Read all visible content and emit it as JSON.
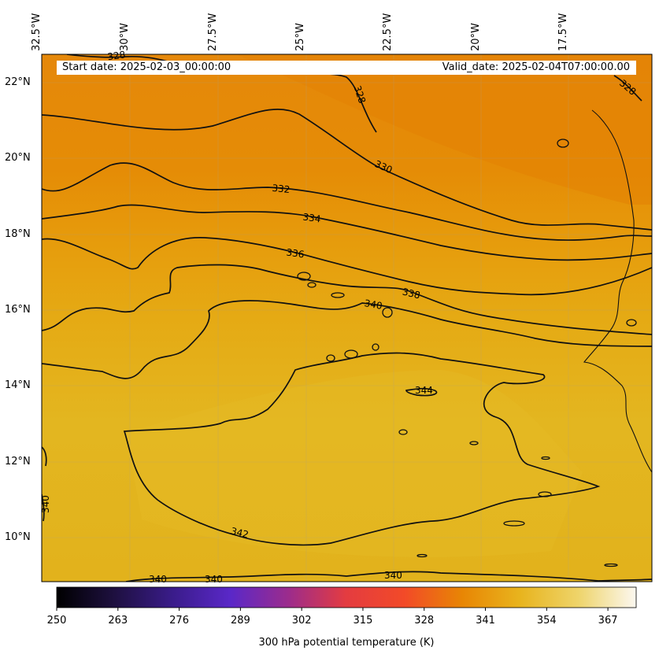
{
  "map": {
    "lon_labels": [
      "32.5°W",
      "30°W",
      "27.5°W",
      "25°W",
      "22.5°W",
      "20°W",
      "17.5°W"
    ],
    "lat_labels": [
      "22°N",
      "20°N",
      "18°N",
      "16°N",
      "14°N",
      "12°N",
      "10°N"
    ],
    "start_date": "Start date: 2025-02-03_00:00:00",
    "valid_date": "Valid_date: 2025-02-04T07:00:00.00",
    "contour_labels": [
      "328",
      "328",
      "328",
      "330",
      "332",
      "334",
      "336",
      "338",
      "340",
      "344",
      "342",
      "340",
      "340",
      "340",
      "340"
    ],
    "fill_colors": {
      "north": "#e58a04",
      "mid": "#e6a40e",
      "south": "#e3b41f"
    }
  },
  "colorbar": {
    "ticks": [
      "250",
      "263",
      "276",
      "289",
      "302",
      "315",
      "328",
      "341",
      "354",
      "367"
    ],
    "title": "300 hPa potential temperature (K)",
    "range": [
      250,
      373
    ],
    "colors": [
      "#000000",
      "#1e1040",
      "#3a1c8a",
      "#5a28c8",
      "#9c2c8c",
      "#e43c40",
      "#f24a28",
      "#e88604",
      "#e8b41e",
      "#eed46a",
      "#fcf8f0"
    ]
  }
}
